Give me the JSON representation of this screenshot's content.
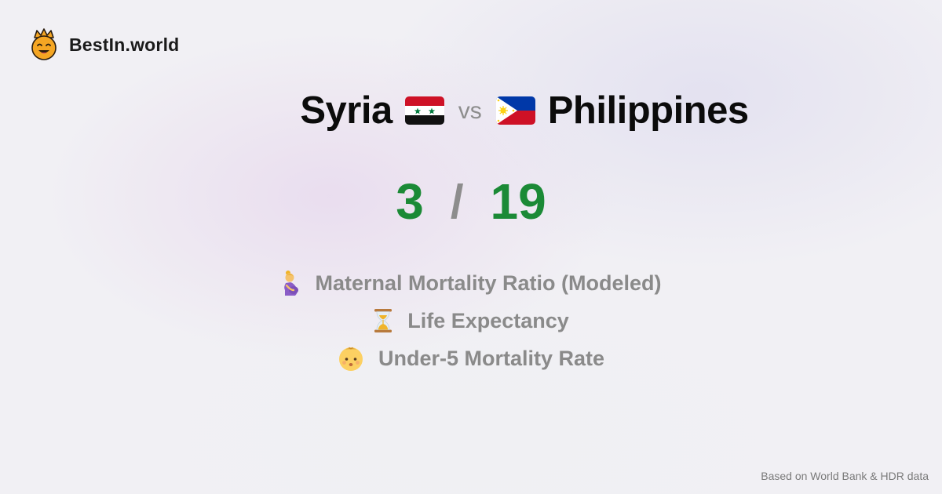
{
  "brand": {
    "name": "BestIn.world",
    "icon": "crowned-smiley-icon"
  },
  "comparison": {
    "country_a": "Syria",
    "flag_a": "syria-flag-icon",
    "vs": "vs",
    "country_b": "Philippines",
    "flag_b": "philippines-flag-icon"
  },
  "score": {
    "a": "3",
    "separator": "/",
    "b": "19",
    "color": "#1b8a36"
  },
  "metrics": [
    {
      "icon": "pregnant-woman-icon",
      "label": "Maternal Mortality Ratio (Modeled)"
    },
    {
      "icon": "hourglass-icon",
      "label": "Life Expectancy"
    },
    {
      "icon": "baby-icon",
      "label": "Under-5 Mortality Rate"
    }
  ],
  "footer": "Based on World Bank & HDR data"
}
